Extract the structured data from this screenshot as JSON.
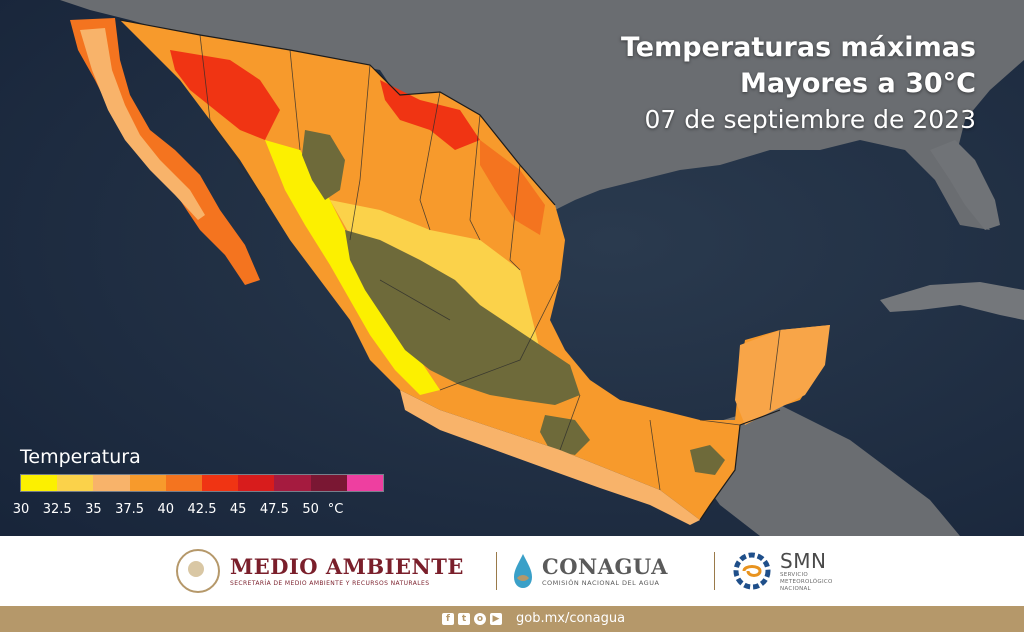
{
  "title": {
    "line1": "Temperaturas máximas",
    "line2": "Mayores a 30°C",
    "date": "07 de septiembre de 2023"
  },
  "legend": {
    "title": "Temperatura",
    "unit": "°C",
    "ticks": [
      "30",
      "32.5",
      "35",
      "37.5",
      "40",
      "42.5",
      "45",
      "47.5",
      "50"
    ],
    "colors": [
      "#fcf000",
      "#fbd24a",
      "#f8b36a",
      "#f79a2c",
      "#f4741f",
      "#f03413",
      "#d81c1c",
      "#a51b3f",
      "#7a1733",
      "#ee3fa0"
    ]
  },
  "map_colors": {
    "ocean": "#1d2b3d",
    "land_gray": "#6c6f73",
    "highland": "#6e6a3a",
    "borders": "#2c2c2c"
  },
  "footer": {
    "medio_ambiente": {
      "name": "MEDIO AMBIENTE",
      "subtitle": "SECRETARÍA DE MEDIO AMBIENTE Y RECURSOS NATURALES"
    },
    "conagua": {
      "name": "CONAGUA",
      "subtitle": "COMISIÓN NACIONAL DEL AGUA"
    },
    "smn": {
      "name": "SMN",
      "subtitle_lines": [
        "SERVICIO",
        "METEOROLÓGICO",
        "NACIONAL"
      ]
    },
    "social_icons": [
      "facebook-icon",
      "twitter-icon",
      "instagram-icon",
      "youtube-icon"
    ],
    "website": "gob.mx/conagua",
    "accent": "#b5986a",
    "brand_red": "#7a1f2b"
  }
}
